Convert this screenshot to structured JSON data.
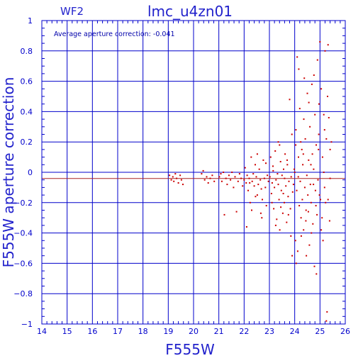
{
  "chart_data": {
    "type": "scatter",
    "panel_label": "WF2",
    "title": "lmc_u4zn01",
    "xlabel": "F555W",
    "ylabel": "F555W aperture correction",
    "annotation": "Average aperture correction: -0.041",
    "xlim": [
      14,
      26
    ],
    "ylim": [
      -1,
      1
    ],
    "x_ticks": [
      14,
      15,
      16,
      17,
      18,
      19,
      20,
      21,
      22,
      23,
      24,
      25,
      26
    ],
    "y_ticks": [
      -1,
      -0.8,
      -0.6,
      -0.4,
      -0.2,
      0,
      0.2,
      0.4,
      0.6,
      0.8,
      1
    ],
    "x_tick_labels": [
      "14",
      "15",
      "16",
      "17",
      "18",
      "19",
      "20",
      "21",
      "22",
      "23",
      "24",
      "25",
      "26"
    ],
    "y_tick_labels": [
      "−1",
      "−0.8",
      "−0.6",
      "−0.4",
      "−0.2",
      "0",
      "0.2",
      "0.4",
      "0.6",
      "0.8",
      "1"
    ],
    "grid": true,
    "reference_lines": [
      {
        "y": 0,
        "color": "#0000cc"
      },
      {
        "y": -0.041,
        "color": "#aa2222"
      }
    ],
    "colors": {
      "axes": "#0000cc",
      "grid": "#0000cc",
      "points": "#cc0000",
      "mean_line": "#aa2222"
    },
    "series": [
      {
        "points": [
          [
            19.05,
            -0.02
          ],
          [
            19.12,
            -0.05
          ],
          [
            19.18,
            -0.03
          ],
          [
            19.22,
            -0.06
          ],
          [
            19.28,
            -0.01
          ],
          [
            19.33,
            -0.04
          ],
          [
            19.4,
            -0.07
          ],
          [
            19.47,
            -0.02
          ],
          [
            19.52,
            -0.05
          ],
          [
            19.58,
            -0.08
          ],
          [
            20.32,
            -0.01
          ],
          [
            20.38,
            0.01
          ],
          [
            20.44,
            -0.05
          ],
          [
            20.52,
            -0.03
          ],
          [
            20.58,
            -0.07
          ],
          [
            20.66,
            -0.04
          ],
          [
            20.74,
            -0.02
          ],
          [
            20.82,
            -0.06
          ],
          [
            21.02,
            -0.03
          ],
          [
            21.08,
            -0.01
          ],
          [
            21.12,
            -0.06
          ],
          [
            21.18,
            0.0
          ],
          [
            21.22,
            -0.28
          ],
          [
            21.28,
            -0.04
          ],
          [
            21.33,
            -0.08
          ],
          [
            21.4,
            -0.02
          ],
          [
            21.46,
            -0.05
          ],
          [
            21.52,
            0.0
          ],
          [
            21.58,
            -0.1
          ],
          [
            21.64,
            -0.03
          ],
          [
            21.7,
            -0.26
          ],
          [
            21.76,
            -0.06
          ],
          [
            21.82,
            -0.01
          ],
          [
            21.88,
            -0.04
          ],
          [
            21.94,
            -0.09
          ],
          [
            22.0,
            -0.05
          ],
          [
            22.04,
            0.03
          ],
          [
            22.08,
            -0.07
          ],
          [
            22.12,
            -0.02
          ],
          [
            22.16,
            -0.12
          ],
          [
            22.2,
            -0.04
          ],
          [
            22.24,
            -0.2
          ],
          [
            22.28,
            0.1
          ],
          [
            22.32,
            -0.06
          ],
          [
            22.36,
            -0.01
          ],
          [
            22.4,
            -0.09
          ],
          [
            22.44,
            0.05
          ],
          [
            22.48,
            -0.03
          ],
          [
            22.52,
            -0.15
          ],
          [
            22.56,
            -0.08
          ],
          [
            22.6,
            0.02
          ],
          [
            22.64,
            -0.05
          ],
          [
            22.68,
            -0.11
          ],
          [
            22.72,
            -0.18
          ],
          [
            22.76,
            0.08
          ],
          [
            22.8,
            -0.04
          ],
          [
            22.84,
            -0.1
          ],
          [
            22.88,
            -0.22
          ],
          [
            22.92,
            -0.02
          ],
          [
            22.96,
            -0.06
          ],
          [
            22.1,
            -0.36
          ],
          [
            22.3,
            -0.25
          ],
          [
            22.52,
            0.12
          ],
          [
            22.7,
            -0.3
          ],
          [
            22.86,
            0.06
          ],
          [
            22.45,
            -0.16
          ],
          [
            22.22,
            -0.07
          ],
          [
            22.66,
            -0.27
          ],
          [
            23.02,
            -0.03
          ],
          [
            23.05,
            0.1
          ],
          [
            23.08,
            -0.14
          ],
          [
            23.11,
            -0.07
          ],
          [
            23.14,
            0.04
          ],
          [
            23.17,
            -0.24
          ],
          [
            23.2,
            -0.1
          ],
          [
            23.23,
            0.14
          ],
          [
            23.26,
            -0.05
          ],
          [
            23.29,
            -0.31
          ],
          [
            23.32,
            -0.01
          ],
          [
            23.35,
            0.2
          ],
          [
            23.38,
            -0.18
          ],
          [
            23.41,
            -0.38
          ],
          [
            23.44,
            0.07
          ],
          [
            23.47,
            -0.12
          ],
          [
            23.5,
            -0.02
          ],
          [
            23.53,
            -0.27
          ],
          [
            23.56,
            0.02
          ],
          [
            23.59,
            -0.2
          ],
          [
            23.62,
            0.12
          ],
          [
            23.65,
            -0.09
          ],
          [
            23.68,
            -0.33
          ],
          [
            23.71,
            0.05
          ],
          [
            23.74,
            -0.16
          ],
          [
            23.77,
            -0.06
          ],
          [
            23.8,
            0.48
          ],
          [
            23.83,
            -0.24
          ],
          [
            23.86,
            -0.03
          ],
          [
            23.89,
            0.25
          ],
          [
            23.92,
            -0.13
          ],
          [
            23.95,
            -0.08
          ],
          [
            23.98,
            0.02
          ],
          [
            23.1,
            -0.2
          ],
          [
            23.25,
            -0.35
          ],
          [
            23.4,
            0.18
          ],
          [
            23.55,
            -0.14
          ],
          [
            23.7,
            0.08
          ],
          [
            23.85,
            -0.42
          ],
          [
            23.15,
            0.01
          ],
          [
            23.35,
            -0.08
          ],
          [
            23.6,
            -0.04
          ],
          [
            23.9,
            -0.55
          ],
          [
            23.45,
            -0.23
          ],
          [
            23.75,
            -0.28
          ],
          [
            24.0,
            0.0
          ],
          [
            24.03,
            -0.45
          ],
          [
            24.05,
            0.28
          ],
          [
            24.08,
            -0.12
          ],
          [
            24.1,
            0.76
          ],
          [
            24.12,
            -0.52
          ],
          [
            24.15,
            0.1
          ],
          [
            24.18,
            -0.22
          ],
          [
            24.2,
            0.42
          ],
          [
            24.22,
            -0.06
          ],
          [
            24.25,
            -0.3
          ],
          [
            24.28,
            0.15
          ],
          [
            24.3,
            -0.18
          ],
          [
            24.32,
            0.05
          ],
          [
            24.35,
            -0.38
          ],
          [
            24.38,
            0.62
          ],
          [
            24.4,
            -0.1
          ],
          [
            24.42,
            0.22
          ],
          [
            24.45,
            -0.25
          ],
          [
            24.48,
            -0.02
          ],
          [
            24.5,
            0.52
          ],
          [
            24.52,
            -0.15
          ],
          [
            24.55,
            0.08
          ],
          [
            24.58,
            -0.48
          ],
          [
            24.6,
            0.3
          ],
          [
            24.62,
            -0.08
          ],
          [
            24.65,
            -0.2
          ],
          [
            24.68,
            0.58
          ],
          [
            24.7,
            0.12
          ],
          [
            24.72,
            -0.34
          ],
          [
            24.75,
            0.02
          ],
          [
            24.78,
            -0.62
          ],
          [
            24.8,
            0.38
          ],
          [
            24.82,
            -0.12
          ],
          [
            24.85,
            0.18
          ],
          [
            24.88,
            -0.28
          ],
          [
            24.9,
            0.74
          ],
          [
            24.92,
            -0.05
          ],
          [
            24.95,
            0.25
          ],
          [
            24.98,
            -0.15
          ],
          [
            24.06,
            -0.6
          ],
          [
            24.16,
            0.68
          ],
          [
            24.26,
            -0.42
          ],
          [
            24.36,
            0.35
          ],
          [
            24.46,
            -0.55
          ],
          [
            24.56,
            0.46
          ],
          [
            24.66,
            -0.4
          ],
          [
            24.76,
            0.64
          ],
          [
            24.86,
            -0.67
          ],
          [
            24.96,
            0.45
          ],
          [
            24.24,
            0.2
          ],
          [
            24.44,
            -0.32
          ],
          [
            24.64,
            0.05
          ],
          [
            24.84,
            -0.22
          ],
          [
            24.14,
            -0.03
          ],
          [
            24.34,
            0.12
          ],
          [
            24.54,
            -0.26
          ],
          [
            24.74,
            -0.08
          ],
          [
            24.94,
            0.15
          ],
          [
            24.04,
            0.18
          ],
          [
            25.0,
            0.86
          ],
          [
            25.02,
            -0.18
          ],
          [
            25.05,
            0.55
          ],
          [
            25.08,
            -0.3
          ],
          [
            25.1,
            0.1
          ],
          [
            25.12,
            -0.45
          ],
          [
            25.15,
            0.38
          ],
          [
            25.18,
            -0.1
          ],
          [
            25.2,
            0.8
          ],
          [
            25.22,
            -0.2
          ],
          [
            25.25,
            0.22
          ],
          [
            25.28,
            -0.92
          ],
          [
            25.3,
            0.5
          ],
          [
            25.32,
            -0.18
          ],
          [
            25.35,
            0.36
          ],
          [
            25.38,
            -0.32
          ],
          [
            25.4,
            0.15
          ],
          [
            25.45,
            0.2
          ],
          [
            25.25,
            -0.98
          ],
          [
            25.15,
            0.0
          ],
          [
            25.05,
            -0.38
          ],
          [
            25.32,
            0.84
          ],
          [
            25.18,
            0.28
          ],
          [
            25.4,
            -0.04
          ]
        ]
      }
    ]
  }
}
